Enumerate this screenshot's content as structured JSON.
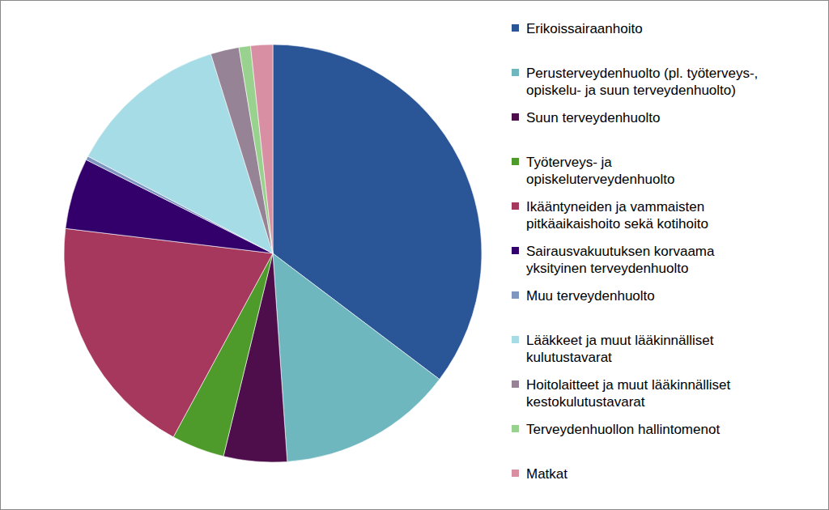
{
  "chart_data": {
    "type": "pie",
    "categories": [
      "Erikoissairaanhoito",
      "Perusterveydenhuolto (pl. työterveys-,\nopiskelu- ja suun terveydenhuolto)",
      "Suun terveydenhuolto",
      "Työterveys- ja\nopiskeluterveydenhuolto",
      "Ikääntyneiden ja vammaisten\npitkäaikaishoito sekä kotihoito",
      "Sairausvakuutuksen korvaama\nyksityinen terveydenhuolto",
      "Muu terveydenhuolto",
      "Lääkkeet ja muut lääkinnälliset\nkulutustavarat",
      "Hoitolaitteet ja muut lääkinnälliset\nkestokulutustavarat",
      "Terveydenhuollon hallintomenot",
      "Matkat"
    ],
    "values": [
      35.3,
      13.6,
      4.9,
      4.1,
      19.0,
      5.5,
      0.3,
      12.5,
      2.2,
      0.9,
      1.7
    ],
    "colors": [
      "#2a5597",
      "#6fb7be",
      "#4d0e4b",
      "#4e9a2b",
      "#a6385e",
      "#33006b",
      "#7f96c0",
      "#a6dce5",
      "#968396",
      "#99d18f",
      "#d88fa3"
    ],
    "legend": "right"
  }
}
